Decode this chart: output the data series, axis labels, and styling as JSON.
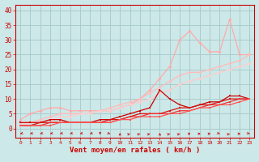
{
  "background_color": "#cce8e8",
  "grid_color": "#aacccc",
  "xlabel": "Vent moyen/en rafales ( km/h )",
  "ylabel_ticks": [
    0,
    5,
    10,
    15,
    20,
    25,
    30,
    35,
    40
  ],
  "ylim": [
    -3,
    42
  ],
  "xlim": [
    -0.5,
    23.5
  ],
  "line_lightest": {
    "color": "#ffaaaa",
    "y": [
      3,
      5,
      6,
      7,
      7,
      6,
      6,
      6,
      6,
      6,
      7,
      8,
      10,
      13,
      17,
      21,
      30,
      33,
      29,
      26,
      26,
      37,
      25,
      25
    ]
  },
  "line_light2": {
    "color": "#ffbbbb",
    "y": [
      2,
      2,
      3,
      4,
      5,
      5,
      5,
      5,
      6,
      7,
      8,
      9,
      10,
      12,
      14,
      16,
      18,
      19,
      19,
      20,
      21,
      22,
      23,
      25
    ]
  },
  "line_light3": {
    "color": "#ffcccc",
    "y": [
      1,
      2,
      2,
      3,
      4,
      4,
      5,
      5,
      6,
      6,
      7,
      8,
      9,
      10,
      12,
      13,
      15,
      16,
      17,
      18,
      19,
      20,
      21,
      22
    ]
  },
  "line_dark1": {
    "color": "#cc0000",
    "y": [
      2,
      2,
      2,
      3,
      3,
      2,
      2,
      2,
      3,
      3,
      4,
      5,
      6,
      7,
      13,
      10,
      8,
      7,
      8,
      9,
      9,
      11,
      11,
      10
    ]
  },
  "line_dark2": {
    "color": "#dd1111",
    "y": [
      1,
      1,
      2,
      2,
      2,
      2,
      2,
      2,
      2,
      3,
      3,
      4,
      5,
      5,
      5,
      6,
      7,
      7,
      8,
      8,
      9,
      10,
      10,
      10
    ]
  },
  "line_dark3": {
    "color": "#ee3333",
    "y": [
      1,
      1,
      1,
      2,
      2,
      2,
      2,
      2,
      2,
      2,
      3,
      4,
      4,
      5,
      5,
      5,
      6,
      6,
      7,
      8,
      8,
      9,
      10,
      10
    ]
  },
  "line_dark4": {
    "color": "#ff5555",
    "y": [
      1,
      1,
      1,
      1,
      2,
      2,
      2,
      2,
      2,
      2,
      3,
      3,
      4,
      4,
      4,
      5,
      5,
      6,
      7,
      7,
      8,
      8,
      9,
      10
    ]
  },
  "arrows": {
    "angles": [
      225,
      225,
      225,
      225,
      225,
      225,
      225,
      225,
      270,
      315,
      90,
      45,
      45,
      45,
      90,
      45,
      45,
      0,
      0,
      0,
      315,
      45,
      0,
      315
    ],
    "color": "#cc0000",
    "y": -1.8
  }
}
